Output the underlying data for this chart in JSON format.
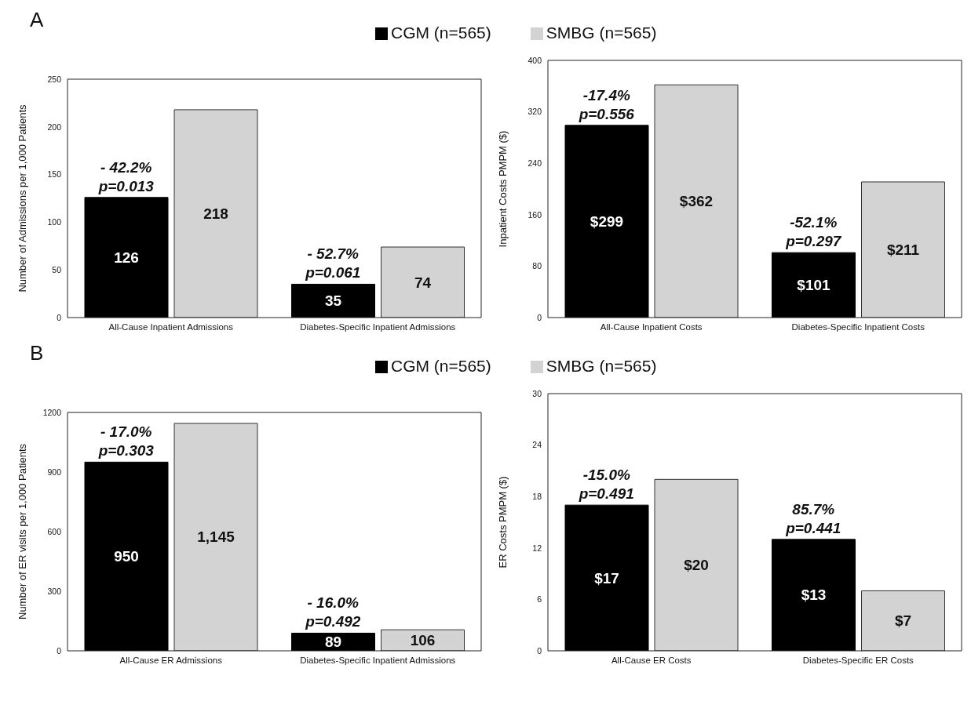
{
  "chart_data": [
    {
      "type": "bar",
      "title": "A",
      "legend": "top",
      "ylabel": "Number of Admissions per 1,000 Patients",
      "categories": [
        "All-Cause Inpatient Admissions",
        "Diabetes-Specific Inpatient Admissions"
      ],
      "ylim": [
        0,
        250
      ],
      "yticks": [
        0,
        50,
        100,
        150,
        200,
        250
      ],
      "grid": false,
      "series": [
        {
          "name": "CGM (n=565)",
          "color": "#000000",
          "values": [
            126,
            35
          ],
          "value_labels": [
            "126",
            "35"
          ]
        },
        {
          "name": "SMBG (n=565)",
          "color": "#d3d3d3",
          "values": [
            218,
            74
          ],
          "value_labels": [
            "218",
            "74"
          ]
        }
      ],
      "annotations": [
        {
          "text": "- 42.2%\np=0.013",
          "x": "All-Cause Inpatient Admissions",
          "y": 126
        },
        {
          "text": "- 52.7%\np=0.061",
          "x": "Diabetes-Specific Inpatient Admissions",
          "y": 35
        }
      ]
    },
    {
      "type": "bar",
      "ylabel": "Inpatient Costs PMPM ($)",
      "categories": [
        "All-Cause Inpatient Costs",
        "Diabetes-Specific Inpatient Costs"
      ],
      "ylim": [
        0,
        400
      ],
      "yticks": [
        0,
        80,
        160,
        240,
        320,
        400
      ],
      "grid": false,
      "series": [
        {
          "color": "#000000",
          "values": [
            299,
            101
          ],
          "value_labels": [
            "$299",
            "$101"
          ]
        },
        {
          "color": "#d3d3d3",
          "values": [
            362,
            211
          ],
          "value_labels": [
            "$362",
            "$211"
          ]
        }
      ],
      "annotations": [
        {
          "text": "-17.4%\np=0.556",
          "x": "All-Cause Inpatient Costs",
          "y": 299
        },
        {
          "text": "-52.1%\np=0.297",
          "x": "Diabetes-Specific Inpatient Costs",
          "y": 101
        }
      ]
    },
    {
      "type": "bar",
      "title": "B",
      "legend": "top",
      "ylabel": "Number of ER visits per 1,000 Patients",
      "categories": [
        "All-Cause ER Admissions",
        "Diabetes-Specific Inpatient Admissions"
      ],
      "ylim": [
        0,
        1200
      ],
      "yticks": [
        0,
        300,
        600,
        900,
        1200
      ],
      "grid": false,
      "series": [
        {
          "name": "CGM (n=565)",
          "color": "#000000",
          "values": [
            950,
            89
          ],
          "value_labels": [
            "950",
            "89"
          ]
        },
        {
          "name": "SMBG (n=565)",
          "color": "#d3d3d3",
          "values": [
            1145,
            106
          ],
          "value_labels": [
            "1,145",
            "106"
          ]
        }
      ],
      "annotations": [
        {
          "text": "- 17.0%\np=0.303",
          "x": "All-Cause ER Admissions",
          "y": 950
        },
        {
          "text": "- 16.0%\np=0.492",
          "x": "Diabetes-Specific Inpatient Admissions",
          "y": 89
        }
      ]
    },
    {
      "type": "bar",
      "ylabel": "ER Costs PMPM ($)",
      "categories": [
        "All-Cause ER Costs",
        "Diabetes-Specific ER Costs"
      ],
      "ylim": [
        0,
        30
      ],
      "yticks": [
        0,
        6,
        12,
        18,
        24,
        30
      ],
      "grid": false,
      "series": [
        {
          "color": "#000000",
          "values": [
            17,
            13
          ],
          "value_labels": [
            "$17",
            "$13"
          ]
        },
        {
          "color": "#d3d3d3",
          "values": [
            20,
            7
          ],
          "value_labels": [
            "$20",
            "$7"
          ]
        }
      ],
      "annotations": [
        {
          "text": "-15.0%\np=0.491",
          "x": "All-Cause ER Costs",
          "y": 17
        },
        {
          "text": "85.7%\np=0.441",
          "x": "Diabetes-Specific ER Costs",
          "y": 13
        }
      ]
    }
  ]
}
